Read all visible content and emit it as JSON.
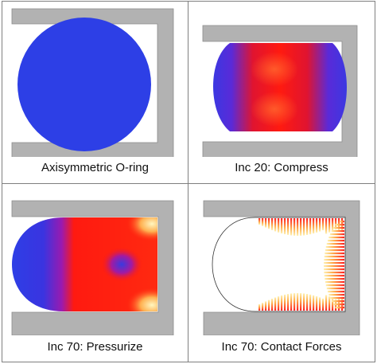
{
  "panels": [
    {
      "id": "axisymmetric-o-ring",
      "caption": "Axisymmetric O-ring"
    },
    {
      "id": "compress",
      "caption": "Inc 20: Compress"
    },
    {
      "id": "pressurize",
      "caption": "Inc 70: Pressurize"
    },
    {
      "id": "contact-forces",
      "caption": "Inc 70: Contact Forces"
    }
  ],
  "colors": {
    "groove": "#b2b2b2",
    "groove_edge": "#8c8c8c",
    "seal_low": "#2d3fe6",
    "seal_mid": "#ff1010",
    "seal_high": "#fff4b0",
    "outline": "#333333"
  }
}
